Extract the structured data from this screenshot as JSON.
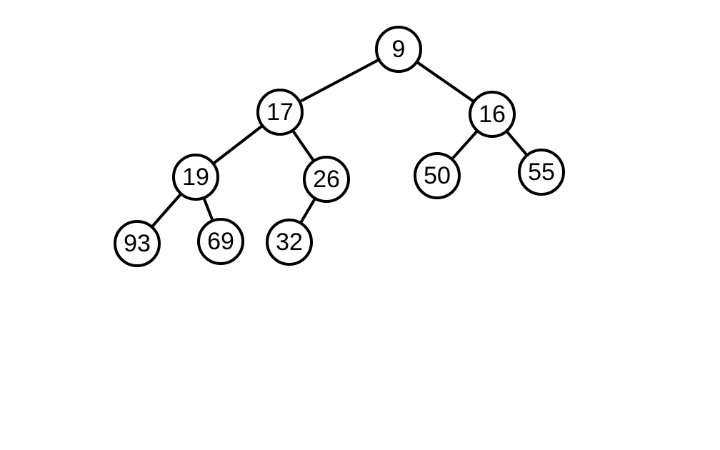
{
  "tree": {
    "nodes": [
      {
        "id": "n9",
        "label": "9"
      },
      {
        "id": "n17",
        "label": "17"
      },
      {
        "id": "n16",
        "label": "16"
      },
      {
        "id": "n19",
        "label": "19"
      },
      {
        "id": "n26",
        "label": "26"
      },
      {
        "id": "n50",
        "label": "50"
      },
      {
        "id": "n55",
        "label": "55"
      },
      {
        "id": "n93",
        "label": "93"
      },
      {
        "id": "n69",
        "label": "69"
      },
      {
        "id": "n32",
        "label": "32"
      }
    ],
    "edges": [
      {
        "from": "n9",
        "to": "n17"
      },
      {
        "from": "n9",
        "to": "n16"
      },
      {
        "from": "n17",
        "to": "n19"
      },
      {
        "from": "n17",
        "to": "n26"
      },
      {
        "from": "n16",
        "to": "n50"
      },
      {
        "from": "n16",
        "to": "n55"
      },
      {
        "from": "n19",
        "to": "n93"
      },
      {
        "from": "n19",
        "to": "n69"
      },
      {
        "from": "n26",
        "to": "n32"
      }
    ],
    "colors": {
      "stroke": "#000000",
      "fill": "#ffffff",
      "text": "#000000"
    }
  }
}
